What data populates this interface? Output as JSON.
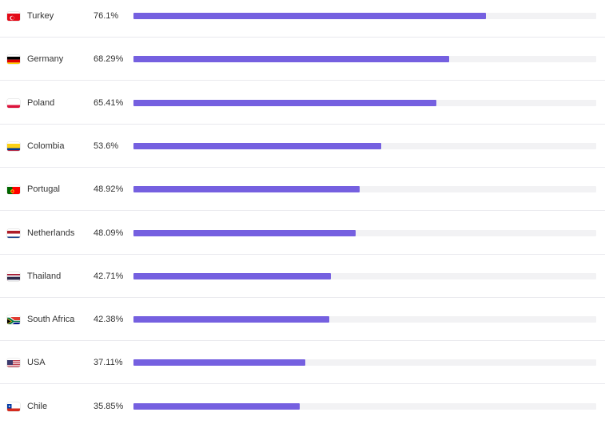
{
  "chart_data": {
    "type": "bar",
    "orientation": "horizontal",
    "value_suffix": "%",
    "xlim": [
      0,
      100
    ],
    "bar_color": "#7560e0",
    "track_color": "#f2f2f4",
    "categories": [
      "Turkey",
      "Germany",
      "Poland",
      "Colombia",
      "Portugal",
      "Netherlands",
      "Thailand",
      "South Africa",
      "USA",
      "Chile"
    ],
    "values": [
      76.1,
      68.29,
      65.41,
      53.6,
      48.92,
      48.09,
      42.71,
      42.38,
      37.11,
      35.85
    ],
    "value_labels": [
      "76.1%",
      "68.29%",
      "65.41%",
      "53.6%",
      "48.92%",
      "48.09%",
      "42.71%",
      "42.38%",
      "37.11%",
      "35.85%"
    ],
    "flag_icons": [
      "turkey-flag-icon",
      "germany-flag-icon",
      "poland-flag-icon",
      "colombia-flag-icon",
      "portugal-flag-icon",
      "netherlands-flag-icon",
      "thailand-flag-icon",
      "south-africa-flag-icon",
      "usa-flag-icon",
      "chile-flag-icon"
    ]
  }
}
